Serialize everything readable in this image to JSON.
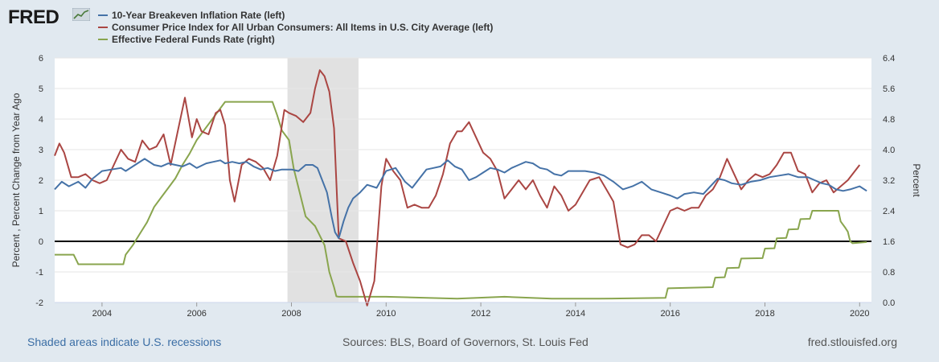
{
  "logo": {
    "text": "FRED",
    "icon": "line-chart-icon"
  },
  "colors": {
    "breakeven": "#4572a7",
    "cpi": "#aa4643",
    "fedfunds": "#89a54e",
    "recession": "#e1e1e1",
    "background": "#e1e9f0"
  },
  "footer": {
    "left": "Shaded areas indicate U.S. recessions",
    "center": "Sources: BLS, Board of Governors, St. Louis Fed",
    "right": "fred.stlouisfed.org"
  },
  "chart_data": {
    "type": "line",
    "title": "",
    "xlabel": "",
    "ylabel_left": "Percent , Percent Change from Year Ago",
    "ylabel_right": "Percent",
    "xlim": [
      2003.0,
      2020.25
    ],
    "ylim_left": [
      -2,
      6
    ],
    "ylim_right": [
      0,
      6.4
    ],
    "x_ticks": [
      2004,
      2006,
      2008,
      2010,
      2012,
      2014,
      2016,
      2018,
      2020
    ],
    "x_tick_labels": [
      "2004",
      "2006",
      "2008",
      "2010",
      "2012",
      "2014",
      "2016",
      "2018",
      "2020"
    ],
    "y_left_ticks": [
      -2,
      -1,
      0,
      1,
      2,
      3,
      4,
      5,
      6
    ],
    "y_left_tick_labels": [
      "-2",
      "-1",
      "0",
      "1",
      "2",
      "3",
      "4",
      "5",
      "6"
    ],
    "y_right_ticks": [
      0,
      0.8,
      1.6,
      2.4,
      3.2,
      4.0,
      4.8,
      5.6,
      6.4
    ],
    "y_right_tick_labels": [
      "0.0",
      "0.8",
      "1.6",
      "2.4",
      "3.2",
      "4.0",
      "4.8",
      "5.6",
      "6.4"
    ],
    "grid": true,
    "zero_line": 0,
    "recession": {
      "start": 2007.917,
      "end": 2009.417
    },
    "series": [
      {
        "name": "10-Year Breakeven Inflation Rate (left)",
        "axis": "left",
        "x": [
          2003.0,
          2003.15,
          2003.3,
          2003.5,
          2003.65,
          2003.8,
          2004.0,
          2004.2,
          2004.4,
          2004.5,
          2004.7,
          2004.9,
          2005.1,
          2005.25,
          2005.4,
          2005.55,
          2005.7,
          2005.85,
          2006.0,
          2006.2,
          2006.35,
          2006.5,
          2006.6,
          2006.75,
          2006.9,
          2007.05,
          2007.2,
          2007.35,
          2007.5,
          2007.65,
          2007.8,
          2008.0,
          2008.15,
          2008.3,
          2008.45,
          2008.55,
          2008.65,
          2008.75,
          2008.85,
          2008.92,
          2009.0,
          2009.1,
          2009.2,
          2009.3,
          2009.45,
          2009.6,
          2009.8,
          2010.0,
          2010.2,
          2010.4,
          2010.55,
          2010.7,
          2010.85,
          2011.0,
          2011.15,
          2011.3,
          2011.45,
          2011.6,
          2011.75,
          2011.9,
          2012.05,
          2012.2,
          2012.35,
          2012.5,
          2012.65,
          2012.8,
          2012.95,
          2013.1,
          2013.25,
          2013.4,
          2013.55,
          2013.7,
          2013.85,
          2014.0,
          2014.2,
          2014.4,
          2014.6,
          2014.8,
          2015.0,
          2015.2,
          2015.4,
          2015.6,
          2015.8,
          2016.0,
          2016.15,
          2016.3,
          2016.5,
          2016.7,
          2016.85,
          2017.0,
          2017.15,
          2017.3,
          2017.5,
          2017.7,
          2017.9,
          2018.1,
          2018.3,
          2018.5,
          2018.7,
          2018.9,
          2019.05,
          2019.2,
          2019.35,
          2019.5,
          2019.65,
          2019.8,
          2020.0,
          2020.15
        ],
        "y": [
          1.7,
          1.95,
          1.8,
          1.95,
          1.75,
          2.05,
          2.3,
          2.35,
          2.4,
          2.3,
          2.5,
          2.7,
          2.5,
          2.45,
          2.55,
          2.5,
          2.45,
          2.55,
          2.4,
          2.55,
          2.6,
          2.65,
          2.55,
          2.6,
          2.55,
          2.6,
          2.45,
          2.35,
          2.4,
          2.3,
          2.35,
          2.35,
          2.3,
          2.5,
          2.5,
          2.4,
          2.0,
          1.6,
          0.8,
          0.3,
          0.1,
          0.65,
          1.1,
          1.4,
          1.6,
          1.85,
          1.75,
          2.3,
          2.4,
          1.95,
          1.75,
          2.05,
          2.35,
          2.4,
          2.45,
          2.65,
          2.45,
          2.35,
          2.0,
          2.1,
          2.25,
          2.4,
          2.35,
          2.25,
          2.4,
          2.5,
          2.6,
          2.55,
          2.4,
          2.35,
          2.2,
          2.15,
          2.3,
          2.3,
          2.3,
          2.25,
          2.15,
          1.95,
          1.7,
          1.8,
          1.95,
          1.7,
          1.6,
          1.5,
          1.4,
          1.55,
          1.6,
          1.55,
          1.8,
          2.05,
          2.0,
          1.9,
          1.85,
          1.95,
          2.0,
          2.1,
          2.15,
          2.2,
          2.1,
          2.1,
          2.0,
          1.9,
          1.85,
          1.7,
          1.65,
          1.7,
          1.8,
          1.65
        ]
      },
      {
        "name": "Consumer Price Index for All Urban Consumers: All Items in U.S. City Average (left)",
        "axis": "left",
        "x": [
          2003.0,
          2003.1,
          2003.2,
          2003.35,
          2003.5,
          2003.65,
          2003.8,
          2003.95,
          2004.1,
          2004.25,
          2004.4,
          2004.55,
          2004.7,
          2004.85,
          2005.0,
          2005.15,
          2005.3,
          2005.45,
          2005.6,
          2005.75,
          2005.9,
          2006.0,
          2006.1,
          2006.25,
          2006.4,
          2006.5,
          2006.6,
          2006.7,
          2006.8,
          2006.95,
          2007.1,
          2007.25,
          2007.4,
          2007.55,
          2007.7,
          2007.85,
          2007.95,
          2008.1,
          2008.25,
          2008.4,
          2008.5,
          2008.6,
          2008.7,
          2008.8,
          2008.9,
          2009.0,
          2009.15,
          2009.3,
          2009.45,
          2009.6,
          2009.75,
          2009.9,
          2010.0,
          2010.15,
          2010.3,
          2010.45,
          2010.6,
          2010.75,
          2010.9,
          2011.05,
          2011.2,
          2011.35,
          2011.5,
          2011.6,
          2011.75,
          2011.9,
          2012.05,
          2012.2,
          2012.35,
          2012.5,
          2012.65,
          2012.8,
          2012.95,
          2013.1,
          2013.25,
          2013.4,
          2013.55,
          2013.7,
          2013.85,
          2014.0,
          2014.15,
          2014.3,
          2014.5,
          2014.65,
          2014.8,
          2014.95,
          2015.1,
          2015.25,
          2015.4,
          2015.55,
          2015.7,
          2015.85,
          2016.0,
          2016.15,
          2016.3,
          2016.45,
          2016.6,
          2016.75,
          2016.9,
          2017.05,
          2017.2,
          2017.35,
          2017.5,
          2017.65,
          2017.8,
          2017.95,
          2018.1,
          2018.25,
          2018.4,
          2018.55,
          2018.7,
          2018.85,
          2019.0,
          2019.15,
          2019.3,
          2019.45,
          2019.6,
          2019.75,
          2019.9,
          2020.0
        ],
        "y": [
          2.8,
          3.2,
          2.9,
          2.1,
          2.1,
          2.2,
          2.0,
          1.9,
          2.0,
          2.5,
          3.0,
          2.7,
          2.6,
          3.3,
          3.0,
          3.1,
          3.5,
          2.5,
          3.6,
          4.7,
          3.4,
          4.0,
          3.6,
          3.5,
          4.2,
          4.3,
          3.8,
          2.0,
          1.3,
          2.5,
          2.7,
          2.6,
          2.4,
          2.0,
          2.8,
          4.3,
          4.2,
          4.1,
          3.9,
          4.2,
          5.0,
          5.6,
          5.4,
          4.9,
          3.7,
          0.1,
          0.0,
          -0.7,
          -1.3,
          -2.1,
          -1.3,
          1.8,
          2.7,
          2.3,
          2.0,
          1.1,
          1.2,
          1.1,
          1.1,
          1.5,
          2.2,
          3.2,
          3.6,
          3.6,
          3.9,
          3.4,
          2.9,
          2.7,
          2.3,
          1.4,
          1.7,
          2.0,
          1.7,
          2.0,
          1.5,
          1.1,
          1.8,
          1.5,
          1.0,
          1.2,
          1.6,
          2.0,
          2.1,
          1.7,
          1.3,
          -0.1,
          -0.2,
          -0.1,
          0.2,
          0.2,
          0.0,
          0.5,
          1.0,
          1.1,
          1.0,
          1.1,
          1.1,
          1.5,
          1.7,
          2.1,
          2.7,
          2.2,
          1.7,
          2.0,
          2.2,
          2.1,
          2.2,
          2.5,
          2.9,
          2.9,
          2.3,
          2.2,
          1.6,
          1.9,
          2.0,
          1.6,
          1.8,
          2.0,
          2.3,
          2.5
        ]
      },
      {
        "name": "Effective Federal Funds Rate (right)",
        "axis": "right",
        "x": [
          2003.0,
          2003.4,
          2003.48,
          2003.5,
          2004.45,
          2004.5,
          2004.65,
          2004.8,
          2004.95,
          2005.1,
          2005.25,
          2005.4,
          2005.55,
          2005.7,
          2005.85,
          2006.0,
          2006.15,
          2006.3,
          2006.45,
          2006.6,
          2007.6,
          2007.7,
          2007.8,
          2007.95,
          2008.05,
          2008.2,
          2008.3,
          2008.5,
          2008.7,
          2008.8,
          2008.9,
          2008.95,
          2009.0,
          2010.0,
          2011.5,
          2012.5,
          2013.5,
          2014.5,
          2015.9,
          2015.95,
          2016.9,
          2016.95,
          2017.15,
          2017.2,
          2017.45,
          2017.5,
          2017.95,
          2018.0,
          2018.2,
          2018.25,
          2018.45,
          2018.5,
          2018.7,
          2018.75,
          2018.95,
          2019.0,
          2019.55,
          2019.6,
          2019.7,
          2019.75,
          2019.8,
          2019.85,
          2020.15
        ],
        "y": [
          1.25,
          1.25,
          1.05,
          1.0,
          1.0,
          1.25,
          1.5,
          1.8,
          2.1,
          2.5,
          2.75,
          3.0,
          3.25,
          3.6,
          3.9,
          4.25,
          4.5,
          4.75,
          5.0,
          5.25,
          5.25,
          4.9,
          4.5,
          4.25,
          3.5,
          2.75,
          2.25,
          2.0,
          1.5,
          0.8,
          0.4,
          0.16,
          0.15,
          0.15,
          0.1,
          0.15,
          0.1,
          0.1,
          0.12,
          0.37,
          0.4,
          0.65,
          0.66,
          0.9,
          0.91,
          1.15,
          1.16,
          1.41,
          1.42,
          1.68,
          1.69,
          1.91,
          1.92,
          2.18,
          2.19,
          2.4,
          2.4,
          2.12,
          1.95,
          1.85,
          1.6,
          1.55,
          1.58
        ]
      }
    ]
  }
}
